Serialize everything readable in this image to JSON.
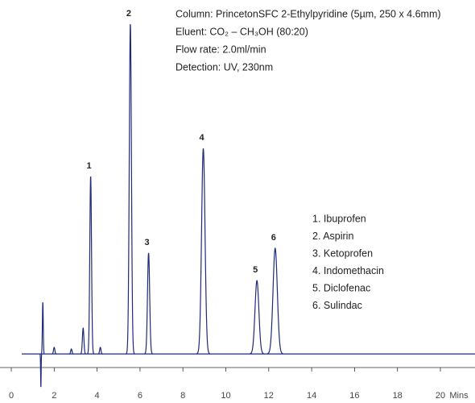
{
  "chart_data": {
    "type": "chromatogram",
    "annotation": [
      "Column: PrincetonSFC 2-Ethylpyridine (5µm, 250 x 4.6mm)",
      "Eluent: CO₂ – CH₃OH (80:20)",
      "Flow rate: 2.0ml/min",
      "Detection: UV, 230nm"
    ],
    "legend": [
      "1. Ibuprofen",
      "2. Aspirin",
      "3. Ketoprofen",
      "4. Indomethacin",
      "5. Diclofenac",
      "6. Sulindac"
    ],
    "x_label": "Mins",
    "xlim": [
      0,
      21.6
    ],
    "xticks": [
      0,
      2,
      4,
      6,
      8,
      10,
      12,
      14,
      16,
      18,
      20
    ],
    "ylim": [
      -10,
      100
    ],
    "color": "#1f2a7a",
    "peaks": [
      {
        "label": "1",
        "time": 3.7,
        "height": 53.8,
        "sigma": 0.04
      },
      {
        "label": "2",
        "time": 5.55,
        "height": 100,
        "sigma": 0.05
      },
      {
        "label": "3",
        "time": 6.4,
        "height": 30.6,
        "sigma": 0.05
      },
      {
        "label": "4",
        "time": 8.95,
        "height": 62.3,
        "sigma": 0.08
      },
      {
        "label": "5",
        "time": 11.45,
        "height": 22.2,
        "sigma": 0.09
      },
      {
        "label": "6",
        "time": 12.3,
        "height": 32,
        "sigma": 0.1
      }
    ],
    "minor_peaks": [
      {
        "time": 1.38,
        "height": -10,
        "sigma": 0.012
      },
      {
        "time": 1.47,
        "height": 15.6,
        "sigma": 0.02
      },
      {
        "time": 2.0,
        "height": 2,
        "sigma": 0.03
      },
      {
        "time": 2.8,
        "height": 1.5,
        "sigma": 0.03
      },
      {
        "time": 3.35,
        "height": 7.8,
        "sigma": 0.035
      },
      {
        "time": 4.15,
        "height": 2,
        "sigma": 0.03
      }
    ]
  }
}
